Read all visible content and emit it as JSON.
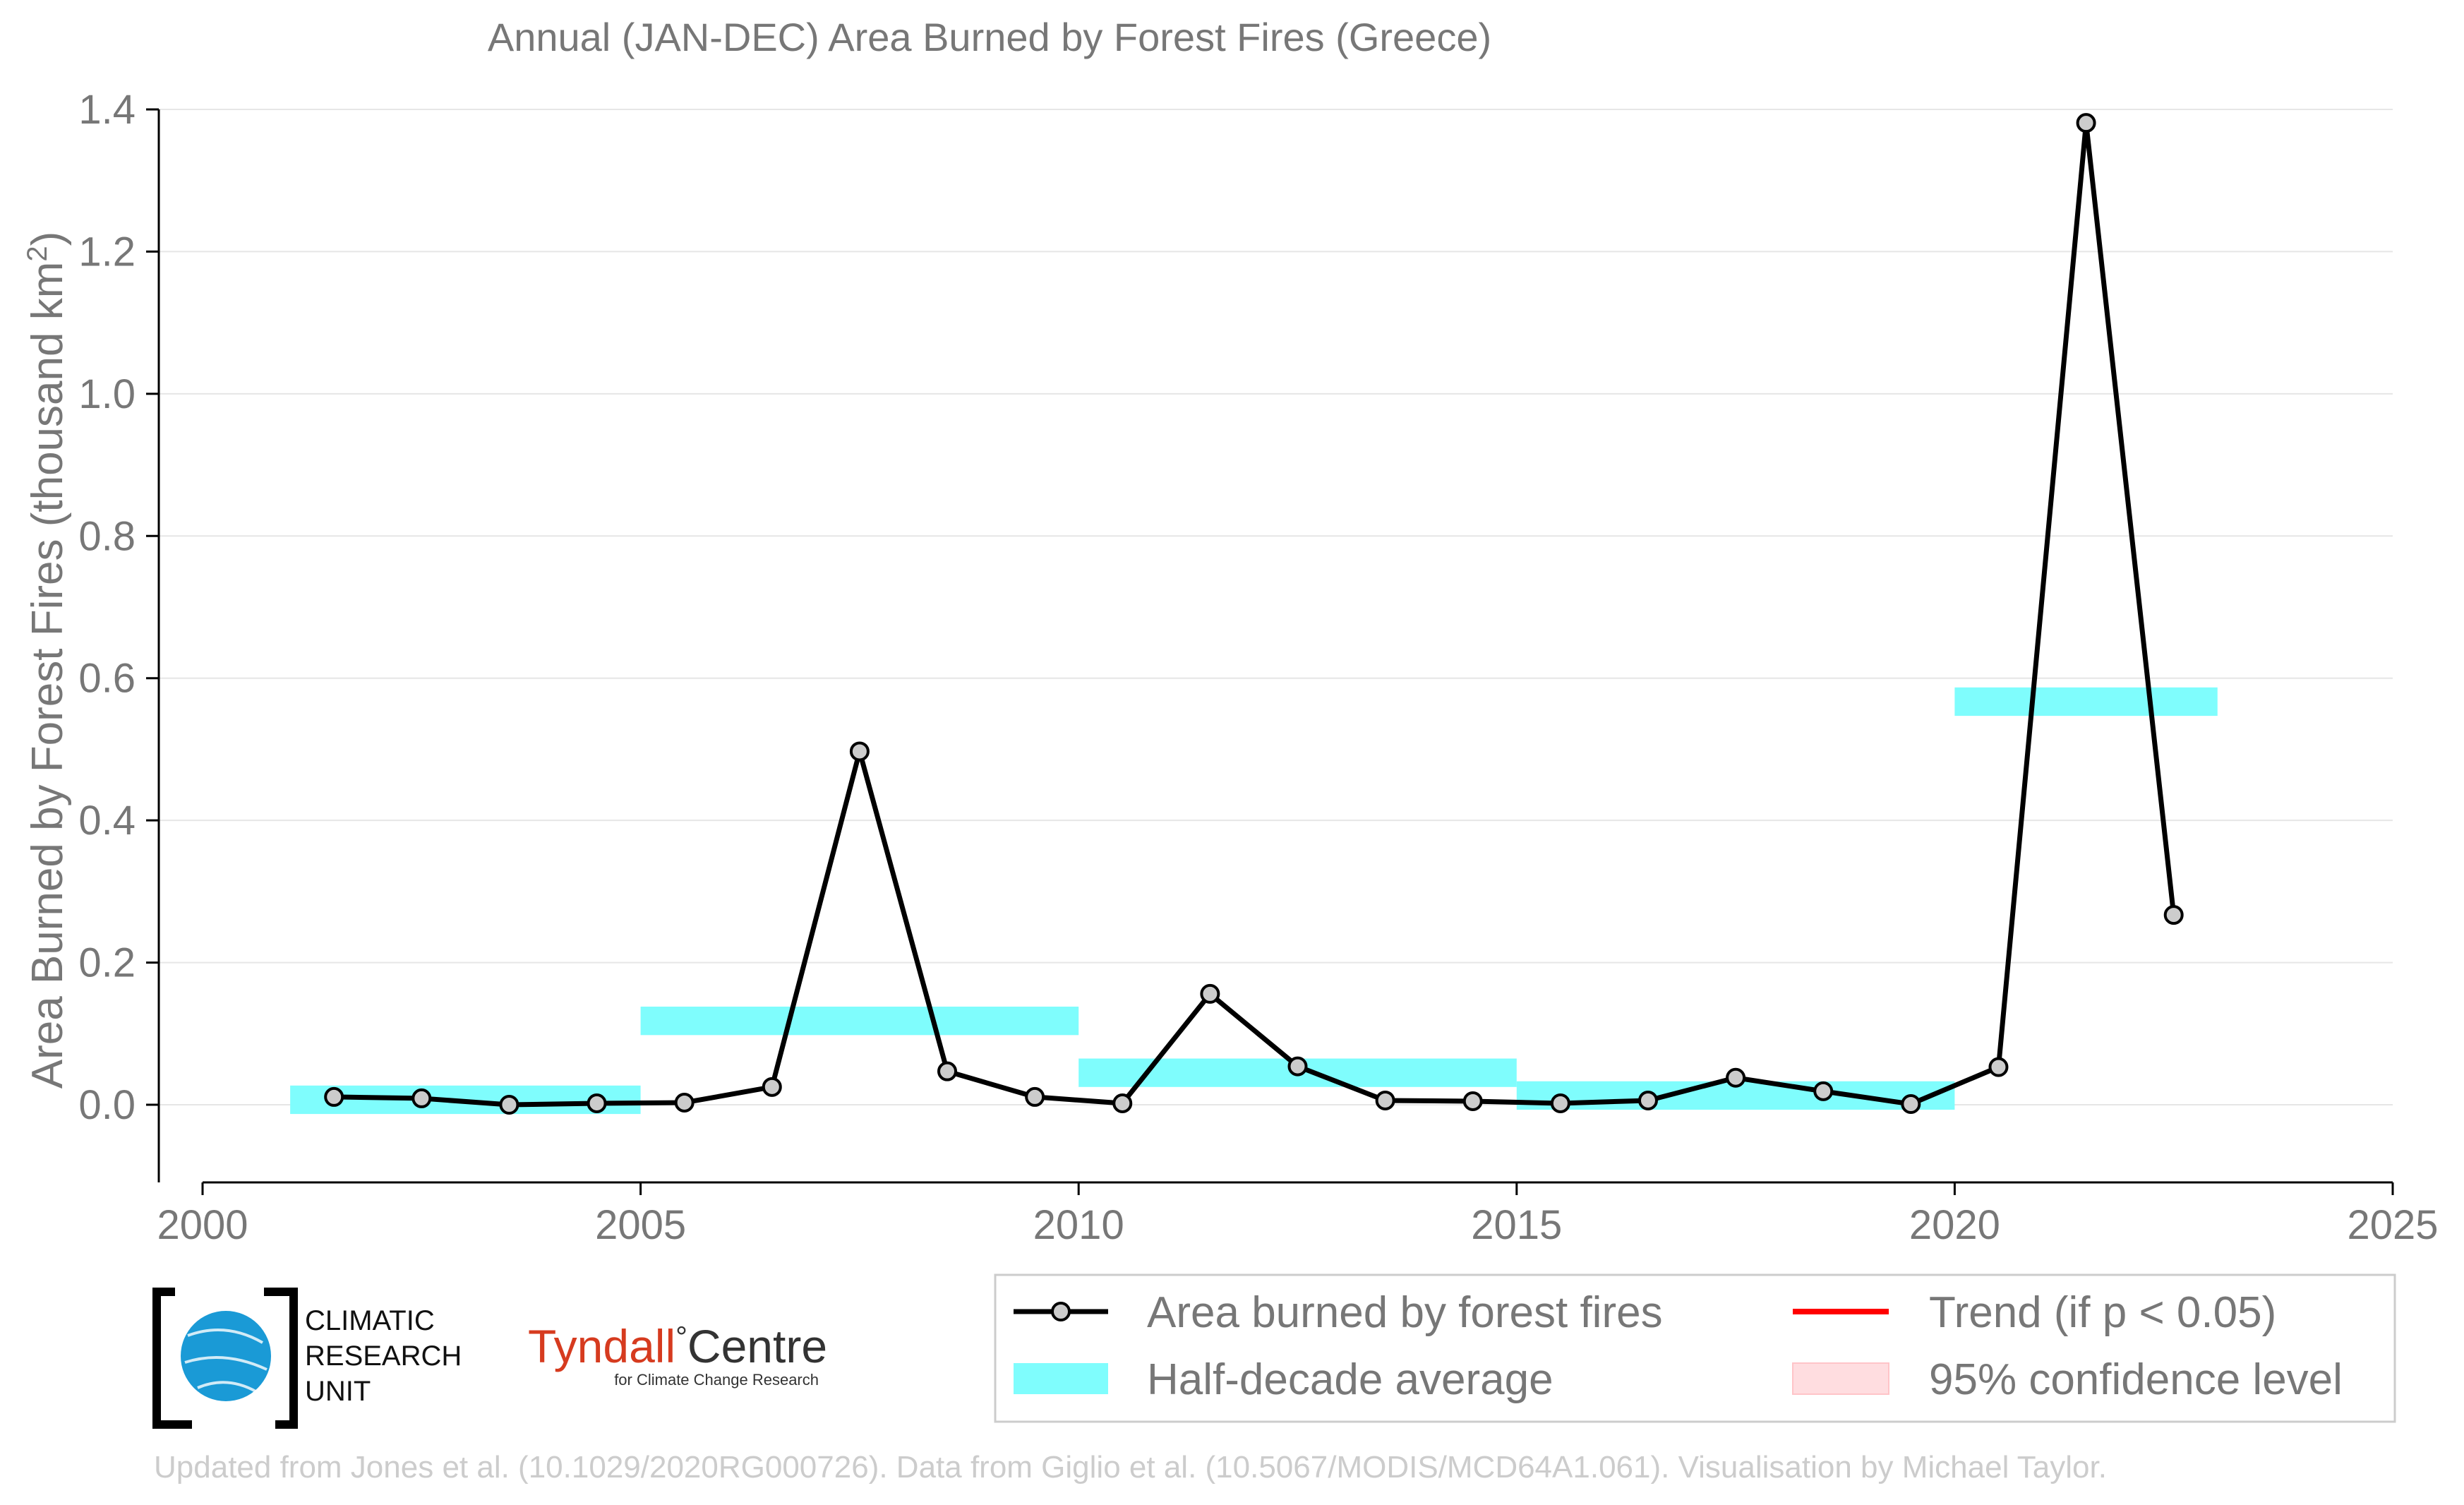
{
  "chart_data": {
    "type": "line",
    "title": "Annual (JAN-DEC) Area Burned by Forest Fires (Greece)",
    "ylabel": "Area Burned by Forest Fires (thousand km",
    "ylabel_sup": "2",
    "ylabel_close": ")",
    "xlabel": "",
    "xlim": [
      2000,
      2025
    ],
    "ylim": [
      -0.11,
      1.42
    ],
    "x_ticks": [
      "2000",
      "2005",
      "2010",
      "2015",
      "2020",
      "2025"
    ],
    "y_ticks": [
      "0.0",
      "0.2",
      "0.4",
      "0.6",
      "0.8",
      "1.0",
      "1.2",
      "1.4"
    ],
    "grid": true,
    "legend_position": "bottom-right",
    "series": [
      {
        "name": "Area burned by forest fires",
        "color": "#000000",
        "x": [
          2001.5,
          2002.5,
          2003.5,
          2004.5,
          2005.5,
          2006.5,
          2007.5,
          2008.5,
          2009.5,
          2010.5,
          2011.5,
          2012.5,
          2013.5,
          2014.5,
          2015.5,
          2016.5,
          2017.5,
          2018.5,
          2019.5,
          2020.5,
          2021.5,
          2022.5
        ],
        "y": [
          0.011,
          0.009,
          0.0,
          0.002,
          0.003,
          0.025,
          0.497,
          0.047,
          0.011,
          0.002,
          0.156,
          0.054,
          0.006,
          0.005,
          0.002,
          0.006,
          0.038,
          0.019,
          0.001,
          0.053,
          1.381,
          0.267
        ]
      },
      {
        "name": "Half-decade average",
        "color": "#7ffdfd",
        "type": "bands",
        "segments": [
          {
            "x0": 2001,
            "x1": 2005,
            "y0": -0.013,
            "y1": 0.027
          },
          {
            "x0": 2005,
            "x1": 2010,
            "y0": 0.098,
            "y1": 0.138
          },
          {
            "x0": 2010,
            "x1": 2015,
            "y0": 0.025,
            "y1": 0.065
          },
          {
            "x0": 2015,
            "x1": 2020,
            "y0": -0.007,
            "y1": 0.033
          },
          {
            "x0": 2020,
            "x1": 2023,
            "y0": 0.547,
            "y1": 0.587
          }
        ]
      }
    ],
    "legend": [
      {
        "label": "Area burned by forest fires",
        "symbol": "line-marker",
        "color": "#000000"
      },
      {
        "label": "Trend (if p < 0.05)",
        "symbol": "line",
        "color": "#ff0000"
      },
      {
        "label": "Half-decade average",
        "symbol": "patch",
        "color": "#7ffdfd"
      },
      {
        "label": "95% confidence level",
        "symbol": "patch",
        "color": "#ffdde0"
      }
    ]
  },
  "logos": {
    "cru_line1": "CLIMATIC",
    "cru_line2": "RESEARCH",
    "cru_line3": "UNIT",
    "tyndall_name": "Tyndall",
    "tyndall_degree": "°",
    "tyndall_centre": "Centre",
    "tyndall_sub": "for Climate Change Research"
  },
  "credit": "Updated from Jones et al. (10.1029/2020RG000726). Data from Giglio et al. (10.5067/MODIS/MCD64A1.061). Visualisation by Michael Taylor."
}
